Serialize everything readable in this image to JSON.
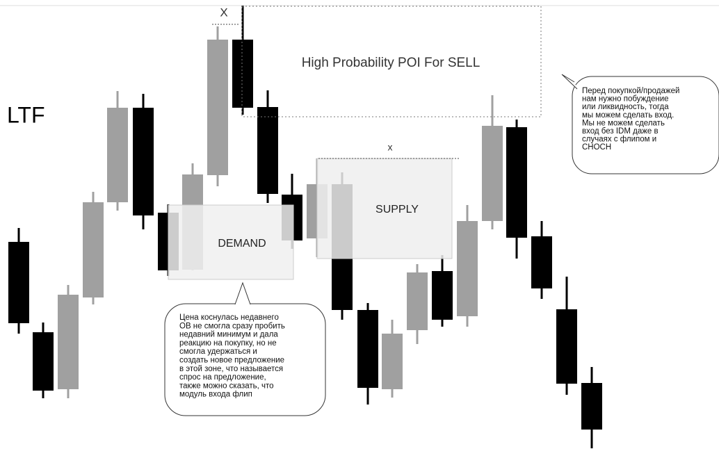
{
  "timeframe": "LTF",
  "poi": {
    "marker": "X",
    "label": "High Probability POI For SELL"
  },
  "supply": {
    "marker": "x",
    "label": "SUPPLY"
  },
  "demand": {
    "label": "DEMAND"
  },
  "note_left": {
    "lines": [
      "Цена коснулась недавнего",
      "OB не смогла сразу пробить",
      "недавний минимум и дала",
      "реакцию на покупку, но не",
      "смогла удержаться и",
      "создать новое предложение",
      "в этой зоне, что называется",
      "спрос на предложение,",
      "также можно сказать, что",
      "модуль входа флип"
    ]
  },
  "note_right": {
    "lines": [
      "Перед покупкой/продажей",
      "нам нужно побуждение",
      "или ликвидность, тогда",
      "мы можем сделать вход.",
      "Мы не можем сделать",
      "вход без IDM даже в",
      "случаях с флипом и",
      "CHOCH"
    ]
  }
}
